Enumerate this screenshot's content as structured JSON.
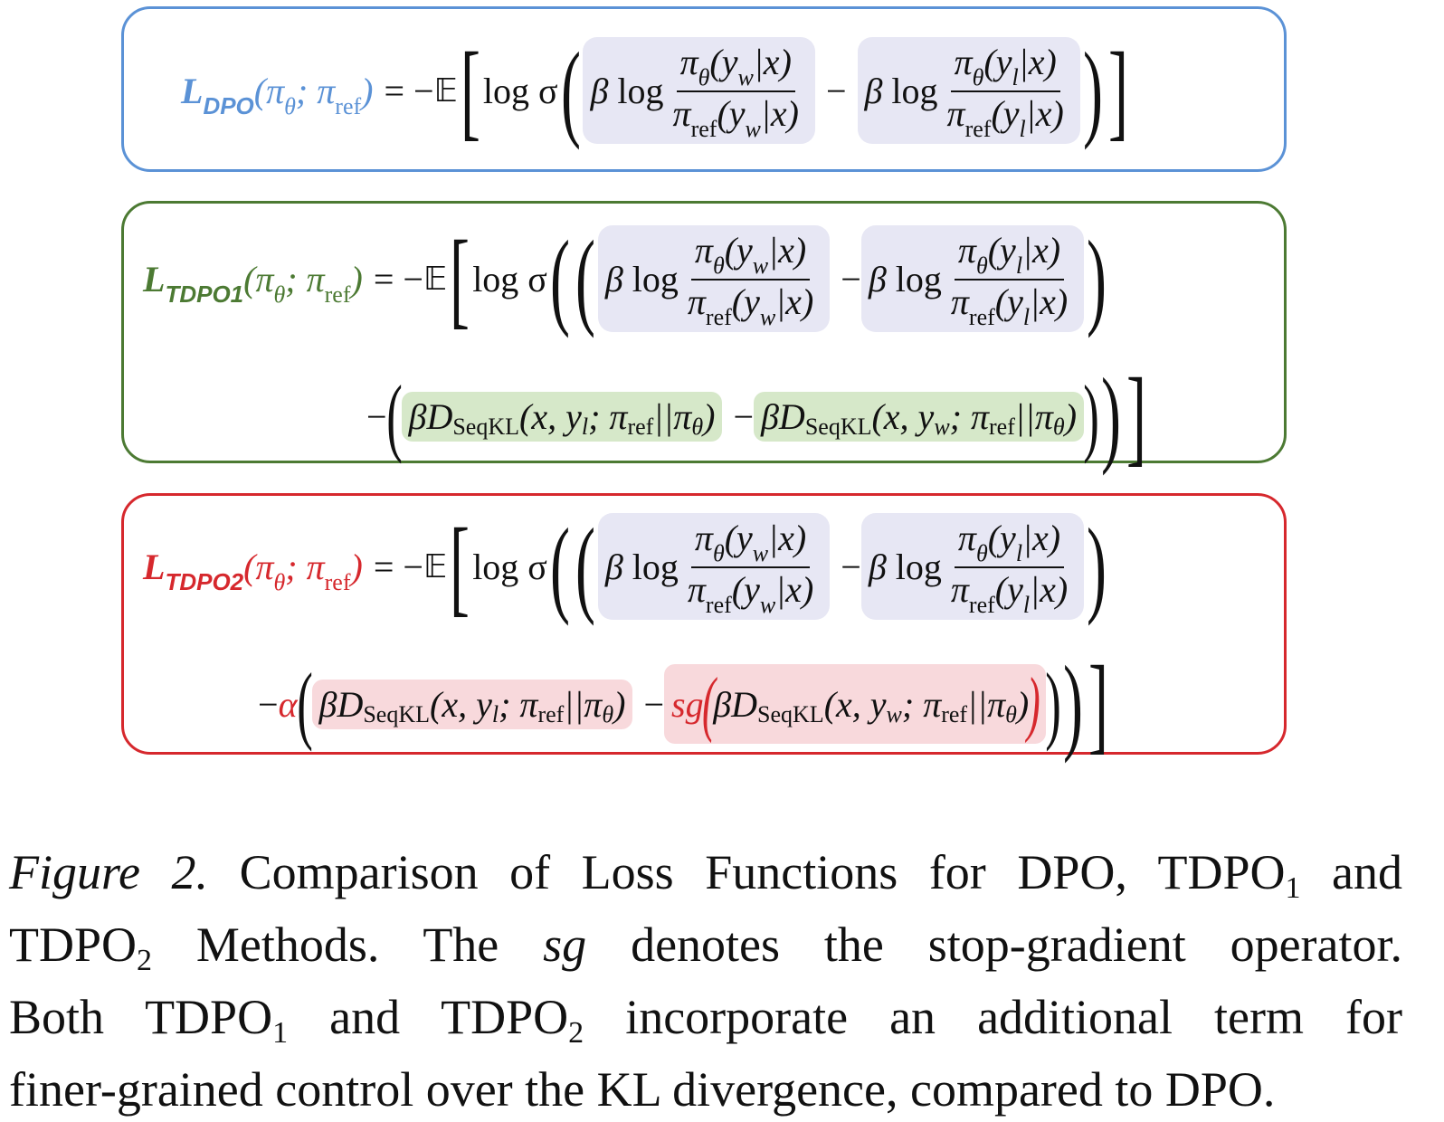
{
  "formulas": {
    "dpo": {
      "name": "L",
      "name_sub": "DPO",
      "args": "(πθ; πref)",
      "eq": "= −𝔼",
      "log_sigma": "log σ",
      "beta_log": "β log",
      "minus": "−",
      "num_w": "πθ(yw|x)",
      "den_w": "πref(yw|x)",
      "num_l": "πθ(yl|x)",
      "den_l": "πref(yl|x)"
    },
    "tdpo1": {
      "name": "L",
      "name_sub": "TDPO",
      "name_subsub": "1",
      "kl_term": "βDSeqKL(x, yl; πref||πθ)",
      "kl_term_w": "βDSeqKL(x, yw; πref||πθ)"
    },
    "tdpo2": {
      "name": "L",
      "name_sub": "TDPO",
      "name_subsub": "2",
      "alpha": "α",
      "sg": "sg"
    }
  },
  "caption": {
    "label": "Figure 2.",
    "line1": "Comparison of Loss Functions for DPO, TDPO",
    "line1_sub": "1",
    "line1_end": "and",
    "line2_start": "TDPO",
    "line2_sub": "2",
    "line2_rest": "Methods.  The",
    "line2_sg": "sg",
    "line2_end": "denotes the stop-gradient operator.",
    "line3_start": "Both TDPO",
    "line3_sub1": "1",
    "line3_mid": "and TDPO",
    "line3_sub2": "2",
    "line3_end": "incorporate an additional term for",
    "line4": "finer-grained control over the KL divergence, compared to DPO."
  },
  "colors": {
    "dpo": "#5b92d6",
    "tdpo1": "#4c7a33",
    "tdpo2": "#d6282d"
  }
}
